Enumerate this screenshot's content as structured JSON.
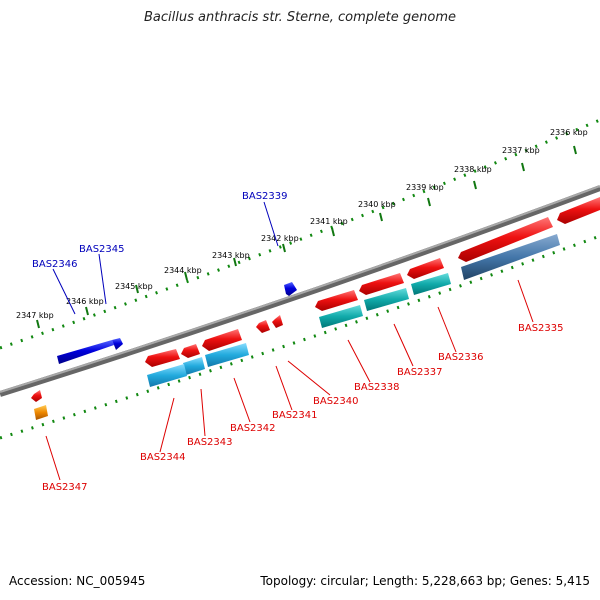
{
  "title": "Bacillus anthracis str. Sterne, complete genome",
  "footer": {
    "accession": "Accession: NC_005945",
    "summary": "Topology: circular; Length: 5,228,663 bp; Genes: 5,415"
  },
  "colors": {
    "backbone": "#808080",
    "tick_dots": "#118811",
    "plus_strand_label": "#0000bb",
    "minus_strand_label": "#dd0000",
    "gene_blue": "#0000dd",
    "gene_red": "#ee1111",
    "cds_light_blue": "#22aadd",
    "cds_teal": "#11aaaa",
    "cds_steel": "#4477aa",
    "gene_orange": "#ee8800"
  },
  "scale": {
    "unit": "kbp",
    "ticks": [
      {
        "kbp": 2336,
        "label": "2336 kbp"
      },
      {
        "kbp": 2337,
        "label": "2337 kbp"
      },
      {
        "kbp": 2338,
        "label": "2338 kbp"
      },
      {
        "kbp": 2339,
        "label": "2339 kbp"
      },
      {
        "kbp": 2340,
        "label": "2340 kbp"
      },
      {
        "kbp": 2341,
        "label": "2341 kbp"
      },
      {
        "kbp": 2342,
        "label": "2342 kbp"
      },
      {
        "kbp": 2343,
        "label": "2343 kbp"
      },
      {
        "kbp": 2344,
        "label": "2344 kbp"
      },
      {
        "kbp": 2345,
        "label": "2345 kbp"
      },
      {
        "kbp": 2346,
        "label": "2346 kbp"
      },
      {
        "kbp": 2347,
        "label": "2347 kbp"
      }
    ]
  },
  "genes": [
    {
      "id": "BAS2335",
      "strand": "minus",
      "color": "red"
    },
    {
      "id": "BAS2336",
      "strand": "minus",
      "color": "red"
    },
    {
      "id": "BAS2337",
      "strand": "minus",
      "color": "red"
    },
    {
      "id": "BAS2338",
      "strand": "minus",
      "color": "red"
    },
    {
      "id": "BAS2339",
      "strand": "plus",
      "color": "blue"
    },
    {
      "id": "BAS2340",
      "strand": "minus",
      "color": "red"
    },
    {
      "id": "BAS2341",
      "strand": "minus",
      "color": "red"
    },
    {
      "id": "BAS2342",
      "strand": "minus",
      "color": "red"
    },
    {
      "id": "BAS2343",
      "strand": "minus",
      "color": "red"
    },
    {
      "id": "BAS2344",
      "strand": "minus",
      "color": "red"
    },
    {
      "id": "BAS2345",
      "strand": "plus",
      "color": "blue"
    },
    {
      "id": "BAS2346",
      "strand": "plus",
      "color": "blue"
    },
    {
      "id": "BAS2347",
      "strand": "minus",
      "color": "red"
    }
  ]
}
